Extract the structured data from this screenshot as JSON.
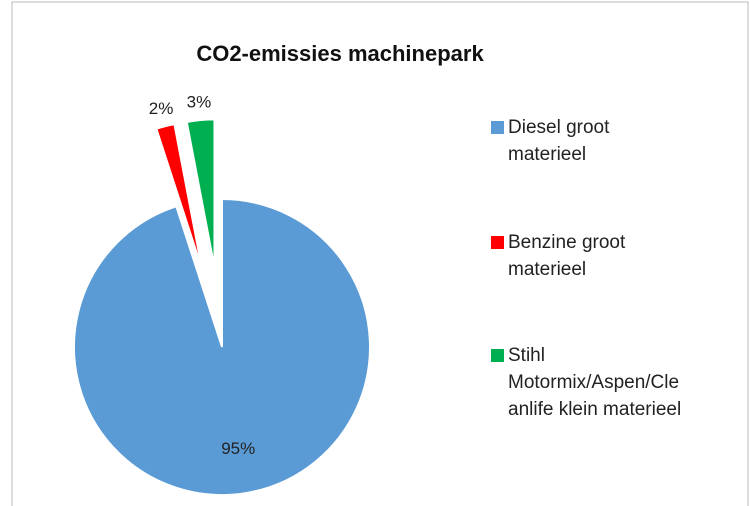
{
  "chart_data": {
    "type": "pie",
    "title": "CO2-emissies machinepark",
    "categories": [
      "Diesel groot materieel",
      "Benzine groot materieel",
      "Stihl Motormix/Aspen/Cleanlife klein materieel"
    ],
    "values": [
      95,
      2,
      3
    ],
    "value_labels": [
      "95%",
      "2%",
      "3%"
    ],
    "colors": [
      "#5b9bd5",
      "#ff0000",
      "#00b050"
    ],
    "legend": "right"
  }
}
